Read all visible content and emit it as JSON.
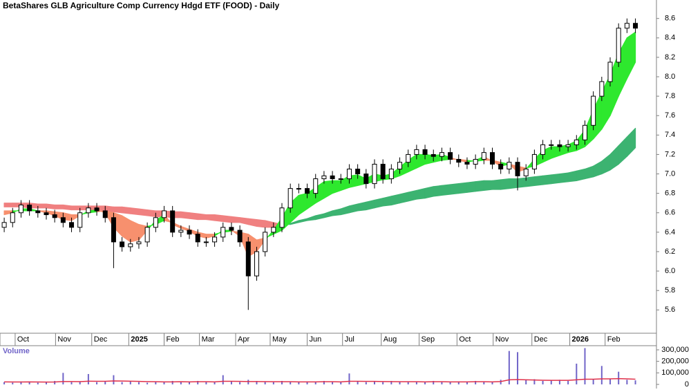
{
  "chart_data": {
    "type": "candlestick",
    "title": "BetaShares GLB Agriculture Comp Currency Hdgd ETF (FOOD) - Daily",
    "xlim": [
      -0.5,
      77.5
    ],
    "xticks": [
      {
        "value": 1.3,
        "label": "Oct"
      },
      {
        "value": 6.1,
        "label": "Nov"
      },
      {
        "value": 10.4,
        "label": "Dec"
      },
      {
        "value": 14.8,
        "label": "2025"
      },
      {
        "value": 19.0,
        "label": "Feb"
      },
      {
        "value": 23.2,
        "label": "Mar"
      },
      {
        "value": 27.5,
        "label": "Apr"
      },
      {
        "value": 31.6,
        "label": "May"
      },
      {
        "value": 36.0,
        "label": "Jun"
      },
      {
        "value": 40.2,
        "label": "Jul"
      },
      {
        "value": 44.8,
        "label": "Aug"
      },
      {
        "value": 49.3,
        "label": "Sep"
      },
      {
        "value": 53.8,
        "label": "Oct"
      },
      {
        "value": 58.1,
        "label": "Nov"
      },
      {
        "value": 62.7,
        "label": "Dec"
      },
      {
        "value": 67.2,
        "label": "2026"
      },
      {
        "value": 71.4,
        "label": "Feb"
      }
    ],
    "ylim": [
      5.36,
      8.79
    ],
    "yticks": [
      5.6,
      5.8,
      {
        "value": 6,
        "label": "6.0"
      },
      6.2,
      6.4,
      6.6,
      6.8,
      {
        "value": 7,
        "label": "7.0"
      },
      7.2,
      7.4,
      7.6,
      7.8,
      {
        "value": 8,
        "label": "8.0"
      },
      8.2,
      8.4,
      8.6
    ],
    "x": [
      0,
      1,
      2,
      3,
      4,
      5,
      6,
      7,
      8,
      9,
      10,
      11,
      12,
      13,
      14,
      15,
      16,
      17,
      18,
      19,
      20,
      21,
      22,
      23,
      24,
      25,
      26,
      27,
      28,
      29,
      30,
      31,
      32,
      33,
      34,
      35,
      36,
      37,
      38,
      39,
      40,
      41,
      42,
      43,
      44,
      45,
      46,
      47,
      48,
      49,
      50,
      51,
      52,
      53,
      54,
      55,
      56,
      57,
      58,
      59,
      60,
      61,
      62,
      63,
      64,
      65,
      66,
      67,
      68,
      69,
      70,
      71,
      72,
      73,
      74,
      75
    ],
    "open": [
      6.45,
      6.5,
      6.6,
      6.68,
      6.62,
      6.6,
      6.58,
      6.55,
      6.5,
      6.45,
      6.6,
      6.65,
      6.62,
      6.55,
      6.3,
      6.25,
      6.28,
      6.3,
      6.45,
      6.55,
      6.62,
      6.4,
      6.42,
      6.38,
      6.3,
      6.3,
      6.35,
      6.45,
      6.42,
      6.3,
      5.95,
      6.2,
      6.4,
      6.45,
      6.65,
      6.85,
      6.85,
      6.8,
      6.95,
      6.98,
      6.95,
      6.95,
      7.05,
      7.0,
      6.9,
      7.1,
      6.95,
      7.05,
      7.12,
      7.2,
      7.25,
      7.2,
      7.18,
      7.22,
      7.15,
      7.12,
      7.1,
      7.15,
      7.22,
      7.1,
      7.05,
      7.12,
      6.98,
      7.05,
      7.2,
      7.3,
      7.3,
      7.28,
      7.3,
      7.35,
      7.5,
      7.8,
      7.95,
      8.15,
      8.5,
      8.55
    ],
    "high": [
      6.55,
      6.65,
      6.73,
      6.73,
      6.67,
      6.65,
      6.63,
      6.6,
      6.55,
      6.65,
      6.7,
      6.7,
      6.67,
      6.6,
      6.35,
      6.33,
      6.35,
      6.5,
      6.6,
      6.67,
      6.67,
      6.47,
      6.47,
      6.43,
      6.35,
      6.4,
      6.5,
      6.5,
      6.47,
      6.35,
      6.25,
      6.45,
      6.5,
      6.7,
      6.9,
      6.9,
      6.9,
      7.0,
      7.03,
      7.03,
      7.0,
      7.1,
      7.1,
      7.05,
      7.15,
      7.15,
      7.1,
      7.17,
      7.25,
      7.3,
      7.3,
      7.25,
      7.27,
      7.27,
      7.2,
      7.17,
      7.2,
      7.27,
      7.27,
      7.15,
      7.17,
      7.17,
      7.1,
      7.25,
      7.35,
      7.35,
      7.35,
      7.35,
      7.4,
      7.55,
      7.85,
      8.0,
      8.2,
      8.55,
      8.6,
      8.6
    ],
    "low": [
      6.4,
      6.45,
      6.55,
      6.57,
      6.55,
      6.53,
      6.5,
      6.45,
      6.4,
      6.4,
      6.55,
      6.57,
      6.5,
      6.03,
      6.2,
      6.2,
      6.23,
      6.25,
      6.4,
      6.5,
      6.35,
      6.35,
      6.33,
      6.25,
      6.25,
      6.25,
      6.3,
      6.37,
      6.25,
      5.6,
      5.9,
      6.15,
      6.35,
      6.4,
      6.6,
      6.8,
      6.75,
      6.75,
      6.9,
      6.9,
      6.9,
      6.9,
      6.95,
      6.85,
      6.85,
      6.9,
      6.9,
      7.0,
      7.07,
      7.15,
      7.15,
      7.13,
      7.13,
      7.1,
      7.07,
      7.05,
      7.05,
      7.1,
      7.05,
      7.0,
      7.0,
      6.83,
      6.93,
      7.0,
      7.15,
      7.25,
      7.23,
      7.23,
      7.25,
      7.3,
      7.45,
      7.75,
      7.9,
      8.1,
      8.45,
      8.45
    ],
    "close": [
      6.5,
      6.6,
      6.68,
      6.62,
      6.6,
      6.58,
      6.55,
      6.5,
      6.45,
      6.6,
      6.65,
      6.62,
      6.55,
      6.3,
      6.25,
      6.28,
      6.3,
      6.45,
      6.55,
      6.62,
      6.4,
      6.42,
      6.38,
      6.3,
      6.3,
      6.35,
      6.45,
      6.42,
      6.3,
      5.95,
      6.2,
      6.4,
      6.45,
      6.65,
      6.85,
      6.85,
      6.8,
      6.95,
      6.98,
      6.95,
      6.95,
      7.05,
      7.0,
      6.9,
      7.1,
      6.95,
      7.05,
      7.12,
      7.2,
      7.25,
      7.2,
      7.18,
      7.22,
      7.15,
      7.12,
      7.1,
      7.15,
      7.22,
      7.1,
      7.05,
      7.12,
      6.98,
      7.05,
      7.2,
      7.3,
      7.3,
      7.28,
      7.3,
      7.35,
      7.5,
      7.8,
      7.95,
      8.15,
      8.5,
      8.55,
      8.5
    ],
    "short_ribbon": {
      "up_color": "#2ee82e",
      "down_color": "#f7906e",
      "fast": [
        6.58,
        6.6,
        6.64,
        6.64,
        6.62,
        6.6,
        6.57,
        6.53,
        6.52,
        6.57,
        6.62,
        6.63,
        6.6,
        6.45,
        6.36,
        6.3,
        6.32,
        6.42,
        6.52,
        6.58,
        6.48,
        6.44,
        6.41,
        6.36,
        6.34,
        6.36,
        6.42,
        6.42,
        6.36,
        6.15,
        6.2,
        6.32,
        6.42,
        6.55,
        6.7,
        6.78,
        6.8,
        6.86,
        6.92,
        6.93,
        6.93,
        6.98,
        6.99,
        6.95,
        7.0,
        6.98,
        7.0,
        7.07,
        7.14,
        7.2,
        7.2,
        7.19,
        7.2,
        7.17,
        7.14,
        7.12,
        7.14,
        7.18,
        7.13,
        7.08,
        7.1,
        7.02,
        7.05,
        7.15,
        7.24,
        7.28,
        7.28,
        7.3,
        7.34,
        7.45,
        7.66,
        7.84,
        8.02,
        8.24,
        8.4,
        8.46
      ],
      "slow": [
        6.62,
        6.62,
        6.62,
        6.62,
        6.62,
        6.62,
        6.61,
        6.6,
        6.58,
        6.58,
        6.6,
        6.61,
        6.62,
        6.6,
        6.57,
        6.52,
        6.48,
        6.46,
        6.48,
        6.52,
        6.5,
        6.46,
        6.43,
        6.4,
        6.38,
        6.38,
        6.4,
        6.41,
        6.4,
        6.38,
        6.32,
        6.34,
        6.38,
        6.42,
        6.5,
        6.58,
        6.64,
        6.7,
        6.75,
        6.8,
        6.83,
        6.86,
        6.88,
        6.9,
        6.92,
        6.94,
        6.95,
        6.98,
        7.02,
        7.06,
        7.1,
        7.12,
        7.14,
        7.15,
        7.15,
        7.14,
        7.13,
        7.14,
        7.14,
        7.12,
        7.1,
        7.08,
        7.06,
        7.08,
        7.12,
        7.16,
        7.19,
        7.22,
        7.24,
        7.28,
        7.36,
        7.46,
        7.6,
        7.8,
        7.98,
        8.15
      ]
    },
    "long_ribbon": {
      "up_color": "#3cb371",
      "down_color": "#f08080",
      "fast": [
        6.66,
        6.66,
        6.66,
        6.65,
        6.65,
        6.65,
        6.64,
        6.64,
        6.63,
        6.63,
        6.63,
        6.63,
        6.62,
        6.61,
        6.6,
        6.59,
        6.58,
        6.57,
        6.56,
        6.56,
        6.55,
        6.55,
        6.54,
        6.53,
        6.53,
        6.52,
        6.51,
        6.5,
        6.5,
        6.48,
        6.46,
        6.45,
        6.45,
        6.47,
        6.49,
        6.52,
        6.54,
        6.57,
        6.59,
        6.62,
        6.64,
        6.67,
        6.69,
        6.71,
        6.73,
        6.75,
        6.77,
        6.79,
        6.81,
        6.83,
        6.85,
        6.87,
        6.88,
        6.89,
        6.9,
        6.91,
        6.92,
        6.93,
        6.93,
        6.94,
        6.95,
        6.95,
        6.96,
        6.97,
        6.98,
        6.99,
        7.0,
        7.01,
        7.03,
        7.05,
        7.08,
        7.13,
        7.2,
        7.29,
        7.38,
        7.47
      ],
      "slow": [
        6.7,
        6.7,
        6.7,
        6.7,
        6.69,
        6.69,
        6.68,
        6.68,
        6.67,
        6.67,
        6.67,
        6.67,
        6.67,
        6.66,
        6.66,
        6.65,
        6.64,
        6.63,
        6.62,
        6.62,
        6.61,
        6.61,
        6.6,
        6.59,
        6.58,
        6.58,
        6.57,
        6.56,
        6.55,
        6.54,
        6.53,
        6.52,
        6.5,
        6.48,
        6.48,
        6.5,
        6.52,
        6.53,
        6.55,
        6.57,
        6.58,
        6.6,
        6.62,
        6.63,
        6.65,
        6.67,
        6.68,
        6.7,
        6.72,
        6.74,
        6.75,
        6.77,
        6.78,
        6.79,
        6.8,
        6.81,
        6.82,
        6.83,
        6.84,
        6.84,
        6.85,
        6.86,
        6.87,
        6.88,
        6.89,
        6.9,
        6.91,
        6.92,
        6.93,
        6.95,
        6.97,
        7.0,
        7.04,
        7.1,
        7.18,
        7.27
      ]
    },
    "volume": {
      "label": "Volume",
      "color": "#7064c8",
      "ma_color": "#e0304a",
      "ylim": [
        0,
        330000
      ],
      "yticks": [
        0,
        {
          "value": 100000,
          "label": "100,000"
        },
        {
          "value": 200000,
          "label": "200,000"
        },
        {
          "value": 300000,
          "label": "300,000"
        }
      ],
      "values": [
        20000,
        15000,
        25000,
        20000,
        15000,
        18000,
        30000,
        100000,
        20000,
        25000,
        90000,
        20000,
        25000,
        80000,
        20000,
        30000,
        20000,
        15000,
        25000,
        20000,
        30000,
        25000,
        20000,
        30000,
        25000,
        20000,
        80000,
        25000,
        20000,
        40000,
        30000,
        25000,
        20000,
        30000,
        25000,
        20000,
        25000,
        20000,
        30000,
        25000,
        20000,
        95000,
        25000,
        20000,
        25000,
        20000,
        30000,
        25000,
        20000,
        25000,
        20000,
        30000,
        25000,
        20000,
        25000,
        20000,
        30000,
        25000,
        20000,
        40000,
        290000,
        280000,
        40000,
        45000,
        30000,
        35000,
        40000,
        30000,
        180000,
        315000,
        45000,
        160000,
        50000,
        110000,
        40000,
        35000
      ],
      "ma": [
        22000,
        21000,
        21000,
        22000,
        21000,
        20000,
        21000,
        25000,
        25000,
        24000,
        28000,
        27000,
        27000,
        30000,
        29000,
        28000,
        26000,
        24000,
        23000,
        22000,
        22000,
        23000,
        22000,
        23000,
        23000,
        22000,
        27000,
        27000,
        26000,
        25000,
        25000,
        24000,
        23000,
        23000,
        23000,
        22000,
        22000,
        22000,
        23000,
        23000,
        22000,
        27000,
        27000,
        26000,
        26000,
        25000,
        24000,
        23000,
        23000,
        23000,
        22000,
        23000,
        23000,
        22000,
        22000,
        22000,
        23000,
        23000,
        22000,
        25000,
        40000,
        42000,
        40000,
        38000,
        36000,
        35000,
        35000,
        35000,
        40000,
        45000,
        45000,
        48000,
        48000,
        50000,
        48000,
        45000
      ]
    }
  }
}
